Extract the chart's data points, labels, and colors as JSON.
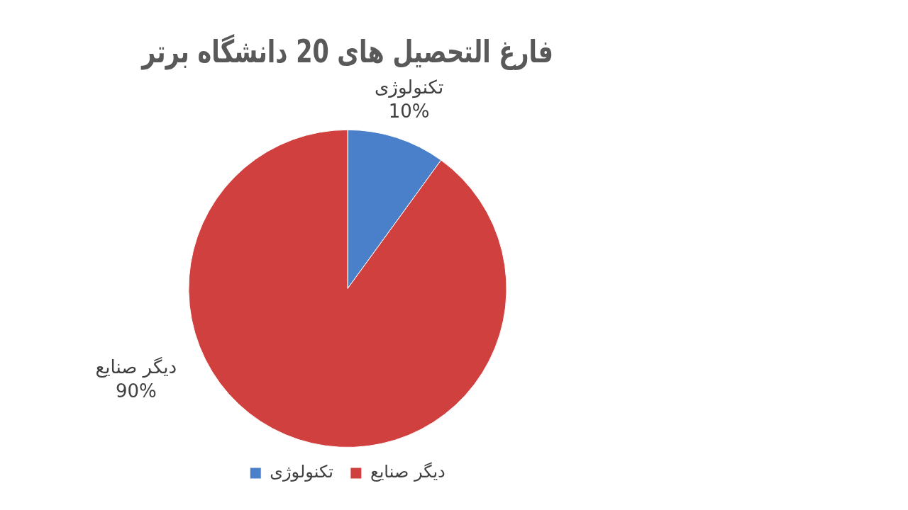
{
  "chart_data": {
    "type": "pie",
    "title": "فارغ التحصیل های 20 دانشگاه برتر",
    "categories": [
      "تکنولوژی",
      "دیگر صنایع"
    ],
    "values": [
      10,
      90
    ],
    "colors": [
      "#4a7fc9",
      "#d0403f"
    ],
    "value_labels": [
      "10%",
      "90%"
    ],
    "legend": "bottom"
  }
}
